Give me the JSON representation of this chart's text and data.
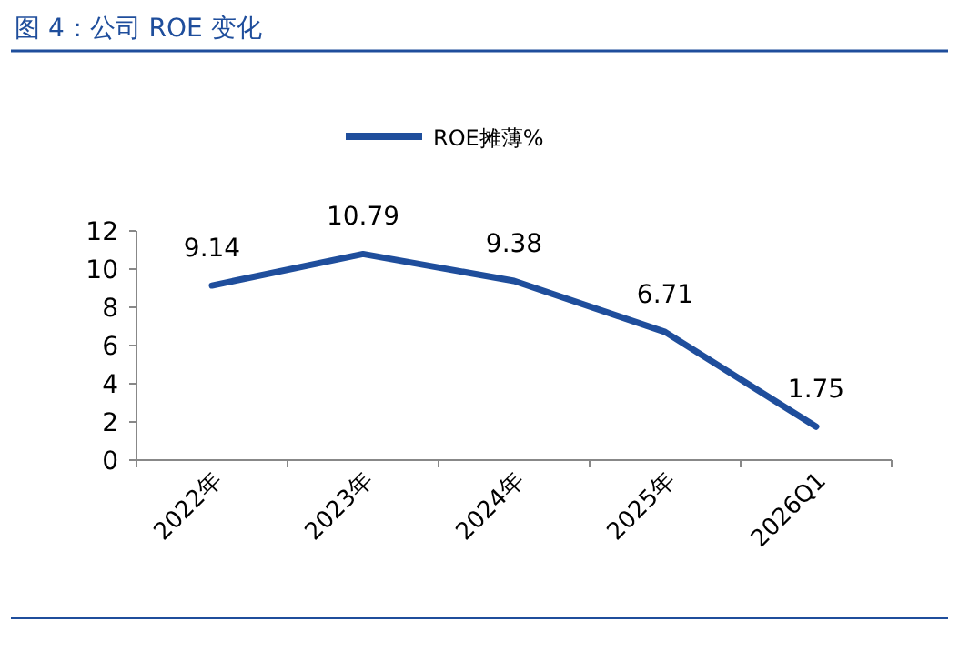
{
  "chart_data": {
    "type": "line",
    "title": "图 4：公司 ROE 变化",
    "categories": [
      "2022年",
      "2023年",
      "2024年",
      "2025年",
      "2026Q1"
    ],
    "series": [
      {
        "name": "ROE摊薄%",
        "color": "#1f4e9c",
        "values": [
          9.14,
          10.79,
          9.38,
          6.71,
          1.75
        ]
      }
    ],
    "ylim": [
      0,
      12
    ],
    "yticks": [
      0,
      2,
      4,
      6,
      8,
      10,
      12
    ],
    "data_labels": true,
    "legend": "top",
    "grid": false,
    "marker": "none",
    "line_style": "solid"
  }
}
